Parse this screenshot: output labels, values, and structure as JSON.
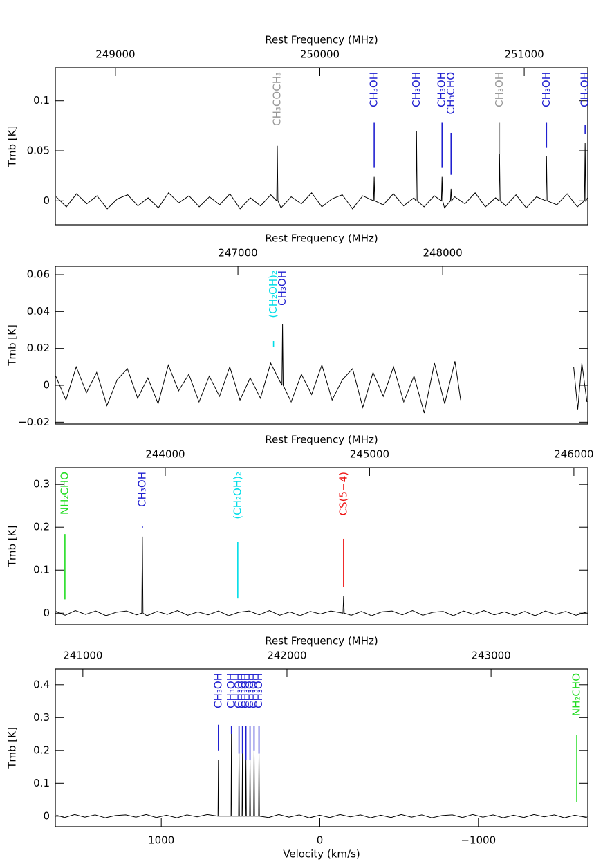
{
  "chart_data": [
    {
      "type": "line",
      "title": "Rest Frequency (MHz)",
      "ylabel": "Tmb [K]",
      "xlim": [
        248706,
        251311
      ],
      "xticks": [
        249000,
        250000,
        251000
      ],
      "ylim": [
        -0.024,
        0.133
      ],
      "yticks": [
        0,
        0.05,
        0.1
      ],
      "series": [
        {
          "color": "#000000",
          "x": [
            248710,
            248760,
            248810,
            248860,
            248910,
            248960,
            249010,
            249060,
            249110,
            249160,
            249210,
            249260,
            249310,
            249360,
            249410,
            249460,
            249510,
            249560,
            249610,
            249660,
            249710,
            249760,
            249789,
            249792,
            249795,
            249810,
            249860,
            249910,
            249960,
            250010,
            250060,
            250110,
            250160,
            250210,
            250263,
            250266,
            250269,
            250310,
            250360,
            250410,
            250460,
            250470,
            250473,
            250476,
            250510,
            250560,
            250595,
            250598,
            250601,
            250610,
            250639,
            250642,
            250645,
            250660,
            250710,
            250760,
            250810,
            250860,
            250876,
            250879,
            250882,
            250910,
            250960,
            251010,
            251060,
            251106,
            251109,
            251112,
            251160,
            251210,
            251260,
            251295,
            251298,
            251301,
            251310
          ],
          "values": [
            0.004,
            -0.006,
            0.007,
            -0.003,
            0.005,
            -0.008,
            0.002,
            0.006,
            -0.005,
            0.003,
            -0.007,
            0.008,
            -0.002,
            0.005,
            -0.006,
            0.004,
            -0.004,
            0.007,
            -0.008,
            0.003,
            -0.005,
            0.006,
            0,
            0.055,
            0,
            -0.007,
            0.004,
            -0.003,
            0.008,
            -0.006,
            0.002,
            0.006,
            -0.008,
            0.005,
            0,
            0.024,
            0,
            -0.004,
            0.007,
            -0.005,
            0.003,
            0,
            0.07,
            0,
            -0.006,
            0.005,
            0,
            0.024,
            0,
            -0.007,
            0,
            0.012,
            0,
            0.004,
            -0.003,
            0.008,
            -0.006,
            0.003,
            0,
            0.047,
            0,
            -0.005,
            0.006,
            -0.007,
            0.004,
            0,
            0.045,
            0,
            -0.004,
            0.007,
            -0.006,
            0,
            0.058,
            0,
            0.003
          ]
        }
      ],
      "lines": [
        {
          "label": "CH₃COCH₃",
          "freq": 249792,
          "color": "#999999"
        },
        {
          "label": "CH₃OH",
          "freq": 250266,
          "color": "#2020d0",
          "marker": [
            0.078,
            0.033
          ]
        },
        {
          "label": "CH₃OH",
          "freq": 250473,
          "color": "#2020d0"
        },
        {
          "label": "CH₃OH",
          "freq": 250598,
          "color": "#2020d0",
          "marker": [
            0.078,
            0.033
          ]
        },
        {
          "label": "CH₃CHO",
          "freq": 250642,
          "color": "#2020d0",
          "marker": [
            0.068,
            0.026
          ]
        },
        {
          "label": "CH₃OH",
          "freq": 250879,
          "color": "#999999",
          "marker": [
            0.078,
            0.047
          ]
        },
        {
          "label": "CH₃OH",
          "freq": 251109,
          "color": "#2020d0",
          "marker": [
            0.078,
            0.053
          ]
        },
        {
          "label": "CH₃OH",
          "freq": 251298,
          "color": "#2020d0",
          "marker": [
            0.076,
            0.067
          ]
        }
      ]
    },
    {
      "type": "line",
      "title": "Rest Frequency (MHz)",
      "ylabel": "Tmb [K]",
      "xlim": [
        246108,
        248709
      ],
      "xticks": [
        247000,
        248000
      ],
      "ylim": [
        -0.021,
        0.0645
      ],
      "yticks": [
        {
          "value": -0.02,
          "label": "−0.02"
        },
        0,
        0.02,
        0.04,
        0.06
      ],
      "series": [
        {
          "color": "#000000",
          "x": [
            246110,
            246160,
            246210,
            246260,
            246310,
            246360,
            246410,
            246460,
            246510,
            246560,
            246610,
            246660,
            246710,
            246760,
            246810,
            246860,
            246910,
            246960,
            247010,
            247060,
            247110,
            247160,
            247215,
            247218,
            247221,
            247260,
            247310,
            247360,
            247410,
            247460,
            247510,
            247560,
            247610,
            247660,
            247710,
            247760,
            247810,
            247860,
            247910,
            247960,
            248010,
            248060,
            248088,
            248300,
            248640,
            248660,
            248680,
            248705
          ],
          "values": [
            0.005,
            -0.008,
            0.01,
            -0.004,
            0.007,
            -0.011,
            0.003,
            0.009,
            -0.007,
            0.004,
            -0.01,
            0.011,
            -0.003,
            0.006,
            -0.009,
            0.005,
            -0.006,
            0.01,
            -0.008,
            0.004,
            -0.007,
            0.012,
            0,
            0.033,
            0,
            -0.009,
            0.006,
            -0.005,
            0.011,
            -0.008,
            0.003,
            0.009,
            -0.012,
            0.007,
            -0.006,
            0.01,
            -0.009,
            0.005,
            -0.015,
            0.012,
            -0.01,
            0.013,
            -0.008,
            null,
            0.01,
            -0.013,
            0.012,
            -0.009
          ]
        }
      ],
      "lines": [
        {
          "label": "(CH₂OH)₂",
          "freq": 247174,
          "color": "#00dde8",
          "marker": [
            0.024,
            0.021
          ]
        },
        {
          "label": "CH₃OH",
          "freq": 247218,
          "color": "#2020d0"
        }
      ]
    },
    {
      "type": "line",
      "title": "Rest Frequency (MHz)",
      "ylabel": "Tmb [K]",
      "xlim": [
        243462,
        246068
      ],
      "xticks": [
        244000,
        245000,
        246000
      ],
      "ylim": [
        -0.027,
        0.339
      ],
      "yticks": [
        0,
        0.1,
        0.2,
        0.3
      ],
      "series": [
        {
          "color": "#000000",
          "x": [
            243465,
            243510,
            243560,
            243610,
            243660,
            243710,
            243760,
            243810,
            243860,
            243885,
            243888,
            243891,
            243910,
            243960,
            244010,
            244060,
            244110,
            244160,
            244210,
            244260,
            244310,
            244360,
            244410,
            244460,
            244510,
            244560,
            244610,
            244660,
            244710,
            244760,
            244810,
            244870,
            244873,
            244876,
            244910,
            244960,
            245010,
            245060,
            245110,
            245160,
            245210,
            245260,
            245310,
            245360,
            245410,
            245460,
            245510,
            245560,
            245610,
            245660,
            245710,
            245760,
            245810,
            245860,
            245910,
            245960,
            246010,
            246065
          ],
          "values": [
            0.004,
            -0.005,
            0.006,
            -0.003,
            0.005,
            -0.006,
            0.002,
            0.005,
            -0.004,
            0,
            0.178,
            0,
            -0.006,
            0.004,
            -0.003,
            0.006,
            -0.005,
            0.003,
            -0.004,
            0.005,
            -0.006,
            0.002,
            0.005,
            -0.004,
            0.006,
            -0.005,
            0.003,
            -0.006,
            0.004,
            -0.002,
            0.005,
            0,
            0.04,
            0,
            -0.005,
            0.004,
            -0.006,
            0.003,
            0.005,
            -0.004,
            0.006,
            -0.005,
            0.002,
            0.004,
            -0.006,
            0.005,
            -0.003,
            0.006,
            -0.004,
            0.003,
            -0.005,
            0.004,
            -0.006,
            0.005,
            -0.003,
            0.004,
            -0.005,
            0.003
          ]
        }
      ],
      "lines": [
        {
          "label": "NH₂CHO",
          "freq": 243509,
          "color": "#22dd22",
          "marker": [
            0.184,
            0.032
          ]
        },
        {
          "label": "CH₃OH",
          "freq": 243888,
          "color": "#2020d0",
          "marker": [
            0.203,
            0.198
          ]
        },
        {
          "label": "(CH₂OH)₂",
          "freq": 244355,
          "color": "#00dde8",
          "marker": [
            0.166,
            0.034
          ]
        },
        {
          "label": "CS(5−4)",
          "freq": 244873,
          "color": "#ee1111",
          "marker": [
            0.173,
            0.061
          ]
        }
      ]
    },
    {
      "type": "line",
      "title": "Rest Frequency (MHz)",
      "ylabel": "Tmb [K]",
      "xlabel": "Velocity (km/s)",
      "xlim": [
        240865,
        243474
      ],
      "xticks": [
        241000,
        242000,
        243000
      ],
      "x2lim": [
        1668,
        -1690
      ],
      "x2ticks": [
        1000,
        0,
        {
          "value": -1000,
          "label": "−1000"
        }
      ],
      "ylim": [
        -0.032,
        0.448
      ],
      "yticks": [
        0,
        0.1,
        0.2,
        0.3,
        0.4
      ],
      "series": [
        {
          "color": "#000000",
          "x": [
            240870,
            240910,
            240960,
            241010,
            241060,
            241110,
            241160,
            241210,
            241260,
            241310,
            241360,
            241410,
            241460,
            241510,
            241560,
            241610,
            241662,
            241664,
            241666,
            241726,
            241728,
            241730,
            241763,
            241765,
            241767,
            241780,
            241782,
            241784,
            241797,
            241799,
            241801,
            241817,
            241819,
            241821,
            241837,
            241839,
            241841,
            241861,
            241863,
            241865,
            241910,
            241960,
            242010,
            242060,
            242110,
            242160,
            242210,
            242260,
            242310,
            242360,
            242410,
            242460,
            242510,
            242560,
            242610,
            242660,
            242710,
            242760,
            242810,
            242860,
            242910,
            242960,
            243010,
            243060,
            243110,
            243160,
            243210,
            243260,
            243310,
            243360,
            243410,
            243470
          ],
          "values": [
            0.003,
            -0.004,
            0.005,
            -0.003,
            0.004,
            -0.005,
            0.002,
            0.004,
            -0.003,
            0.005,
            -0.004,
            0.003,
            -0.005,
            0.004,
            -0.002,
            0.005,
            0,
            0.17,
            0,
            0,
            0.25,
            0,
            0,
            0.19,
            0,
            0,
            0.19,
            0,
            0,
            0.17,
            0,
            0,
            0.17,
            0,
            0,
            0.2,
            0,
            0,
            0.19,
            0,
            -0.004,
            0.005,
            -0.003,
            0.004,
            -0.005,
            0.003,
            -0.004,
            0.005,
            -0.002,
            0.004,
            -0.005,
            0.003,
            -0.004,
            0.005,
            -0.003,
            0.004,
            -0.005,
            0.002,
            0.004,
            -0.004,
            0.005,
            -0.003,
            0.004,
            -0.005,
            0.003,
            -0.004,
            0.005,
            -0.002,
            0.004,
            -0.005,
            0.003,
            -0.004
          ]
        }
      ],
      "lines": [
        {
          "label": "CH₃OH",
          "freq": 241664,
          "color": "#2020d0",
          "marker": [
            0.278,
            0.2
          ]
        },
        {
          "label": "CH₃OH",
          "freq": 241728,
          "color": "#2020d0",
          "marker": [
            0.275,
            0.25
          ]
        },
        {
          "label": "CH₃OH",
          "freq": 241765,
          "color": "#2020d0",
          "marker": [
            0.275,
            0.19
          ]
        },
        {
          "label": "CH₃OH",
          "freq": 241782,
          "color": "#2020d0",
          "marker": [
            0.275,
            0.19
          ]
        },
        {
          "label": "CH₃OH",
          "freq": 241799,
          "color": "#2020d0",
          "marker": [
            0.275,
            0.17
          ]
        },
        {
          "label": "CH₃OH",
          "freq": 241819,
          "color": "#2020d0",
          "marker": [
            0.275,
            0.17
          ]
        },
        {
          "label": "CH₃OH",
          "freq": 241839,
          "color": "#2020d0",
          "marker": [
            0.275,
            0.2
          ]
        },
        {
          "label": "CH₃OH",
          "freq": 241863,
          "color": "#2020d0",
          "marker": [
            0.275,
            0.19
          ]
        },
        {
          "label": "NH₂CHO",
          "freq": 243420,
          "color": "#22dd22",
          "marker": [
            0.246,
            0.042
          ]
        }
      ]
    }
  ]
}
